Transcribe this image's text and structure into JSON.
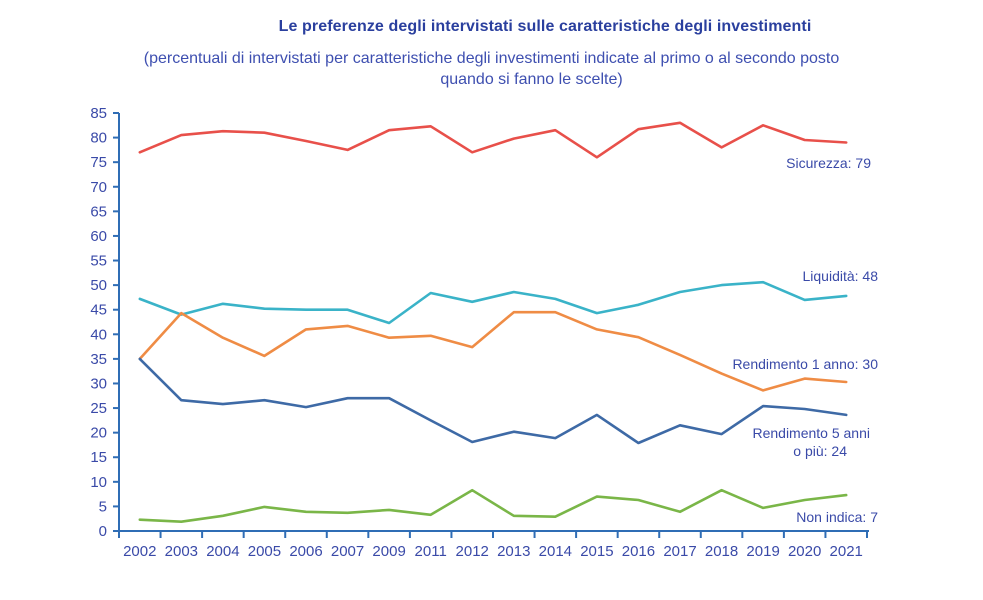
{
  "chart_data": {
    "type": "line",
    "title": "Le preferenze degli intervistati sulle caratteristiche degli investimenti",
    "subtitle_lines": [
      "(percentuali di intervistati per caratteristiche degli investimenti indicate al primo o al secondo posto",
      "quando si fanno le scelte)"
    ],
    "xlabel": "",
    "ylabel": "",
    "ylim": [
      0,
      85
    ],
    "yticks": [
      0,
      5,
      10,
      15,
      20,
      25,
      30,
      35,
      40,
      45,
      50,
      55,
      60,
      65,
      70,
      75,
      80,
      85
    ],
    "grid": false,
    "categories": [
      "2002",
      "2003",
      "2004",
      "2005",
      "2006",
      "2007",
      "2009",
      "2011",
      "2012",
      "2013",
      "2014",
      "2015",
      "2016",
      "2017",
      "2018",
      "2019",
      "2020",
      "2021"
    ],
    "series": [
      {
        "name": "Sicurezza",
        "label": "Sicurezza: 79",
        "color": "#e8504a",
        "values": [
          77,
          80.5,
          81.3,
          81,
          79.3,
          77.5,
          81.5,
          82.3,
          77,
          79.8,
          81.5,
          76,
          81.7,
          83,
          78,
          82.5,
          79.5,
          79
        ]
      },
      {
        "name": "Liquidità",
        "label": "Liquidità: 48",
        "color": "#3ab3c8",
        "values": [
          47.2,
          44,
          46.2,
          45.2,
          45,
          45,
          42.3,
          48.4,
          46.6,
          48.6,
          47.2,
          44.3,
          46,
          48.6,
          50,
          50.6,
          47,
          47.8
        ]
      },
      {
        "name": "Rendimento 1 anno",
        "label": "Rendimento 1 anno: 30",
        "color": "#ef8c45",
        "values": [
          35,
          44.3,
          39.3,
          35.6,
          41,
          41.7,
          39.3,
          39.7,
          37.4,
          44.5,
          44.5,
          41,
          39.4,
          35.8,
          32,
          28.6,
          31,
          30.3
        ]
      },
      {
        "name": "Rendimento 5 anni o più",
        "label_lines": [
          "Rendimento 5 anni",
          "o più: 24"
        ],
        "color": "#3e6aa6",
        "values": [
          35,
          26.6,
          25.8,
          26.6,
          25.2,
          27,
          27,
          22.5,
          18.1,
          20.2,
          18.9,
          23.6,
          17.9,
          21.5,
          19.7,
          25.4,
          24.8,
          23.6
        ]
      },
      {
        "name": "Non indica",
        "label": "Non indica: 7",
        "color": "#7ab648",
        "values": [
          2.3,
          1.9,
          3.1,
          4.9,
          3.9,
          3.7,
          4.3,
          3.3,
          8.3,
          3.1,
          2.9,
          7,
          6.3,
          3.9,
          8.3,
          4.7,
          6.3,
          7.3
        ]
      }
    ],
    "legend": "inline-right-of-lines",
    "axis_color": "#2f6db5"
  }
}
